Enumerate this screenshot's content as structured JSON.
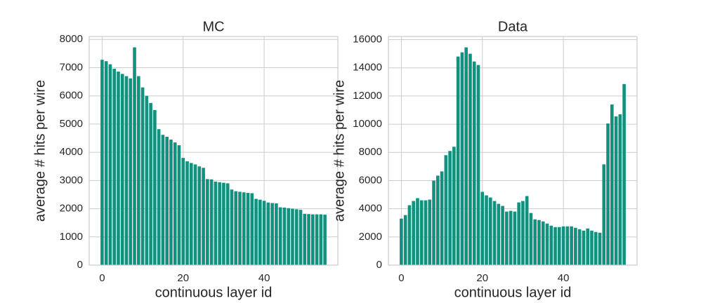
{
  "chart_data": [
    {
      "type": "bar",
      "title": "MC",
      "xlabel": "continuous layer id",
      "ylabel": "average # hits per wire",
      "color": "#11917e",
      "grid": true,
      "x": [
        0,
        1,
        2,
        3,
        4,
        5,
        6,
        7,
        8,
        9,
        10,
        11,
        12,
        13,
        14,
        15,
        16,
        17,
        18,
        19,
        20,
        21,
        22,
        23,
        24,
        25,
        26,
        27,
        28,
        29,
        30,
        31,
        32,
        33,
        34,
        35,
        36,
        37,
        38,
        39,
        40,
        41,
        42,
        43,
        44,
        45,
        46,
        47,
        48,
        49,
        50,
        51,
        52,
        53,
        54,
        55
      ],
      "values": [
        7280,
        7230,
        7120,
        6960,
        6860,
        6780,
        6700,
        6620,
        7720,
        6700,
        6300,
        6000,
        5750,
        5500,
        4820,
        4620,
        4550,
        4450,
        4350,
        4250,
        3800,
        3680,
        3620,
        3570,
        3500,
        3450,
        3050,
        3040,
        2960,
        2940,
        2920,
        2900,
        2680,
        2620,
        2600,
        2580,
        2560,
        2550,
        2350,
        2320,
        2280,
        2220,
        2200,
        2190,
        2050,
        2040,
        2020,
        2000,
        1980,
        1960,
        1820,
        1810,
        1800,
        1800,
        1800,
        1790
      ],
      "xlim": [
        -3.19,
        58.19
      ],
      "xticks": [
        0,
        20,
        40
      ],
      "ylim": [
        0,
        8106
      ],
      "yticks": [
        0,
        1000,
        2000,
        3000,
        4000,
        5000,
        6000,
        7000,
        8000
      ]
    },
    {
      "type": "bar",
      "title": "Data",
      "xlabel": "continuous layer id",
      "ylabel": "average # hits per wire",
      "color": "#11917e",
      "grid": true,
      "x": [
        0,
        1,
        2,
        3,
        4,
        5,
        6,
        7,
        8,
        9,
        10,
        11,
        12,
        13,
        14,
        15,
        16,
        17,
        18,
        19,
        20,
        21,
        22,
        23,
        24,
        25,
        26,
        27,
        28,
        29,
        30,
        31,
        32,
        33,
        34,
        35,
        36,
        37,
        38,
        39,
        40,
        41,
        42,
        43,
        44,
        45,
        46,
        47,
        48,
        49,
        50,
        51,
        52,
        53,
        54,
        55
      ],
      "values": [
        3300,
        3550,
        4250,
        4550,
        4750,
        4600,
        4600,
        4650,
        6000,
        6350,
        6650,
        7800,
        8100,
        8400,
        14800,
        15100,
        15450,
        15000,
        14450,
        14200,
        5200,
        4950,
        4800,
        4550,
        4350,
        4200,
        3800,
        3850,
        3800,
        4450,
        4550,
        4900,
        3700,
        3250,
        3200,
        3100,
        2950,
        2800,
        2700,
        2700,
        2750,
        2750,
        2750,
        2650,
        2550,
        2450,
        2600,
        2450,
        2350,
        2300,
        7150,
        10050,
        11400,
        10550,
        10700,
        12850
      ],
      "xlim": [
        -3.19,
        58.19
      ],
      "xticks": [
        0,
        20,
        40
      ],
      "ylim": [
        0,
        16225
      ],
      "yticks": [
        0,
        2000,
        4000,
        6000,
        8000,
        10000,
        12000,
        14000,
        16000
      ]
    }
  ]
}
